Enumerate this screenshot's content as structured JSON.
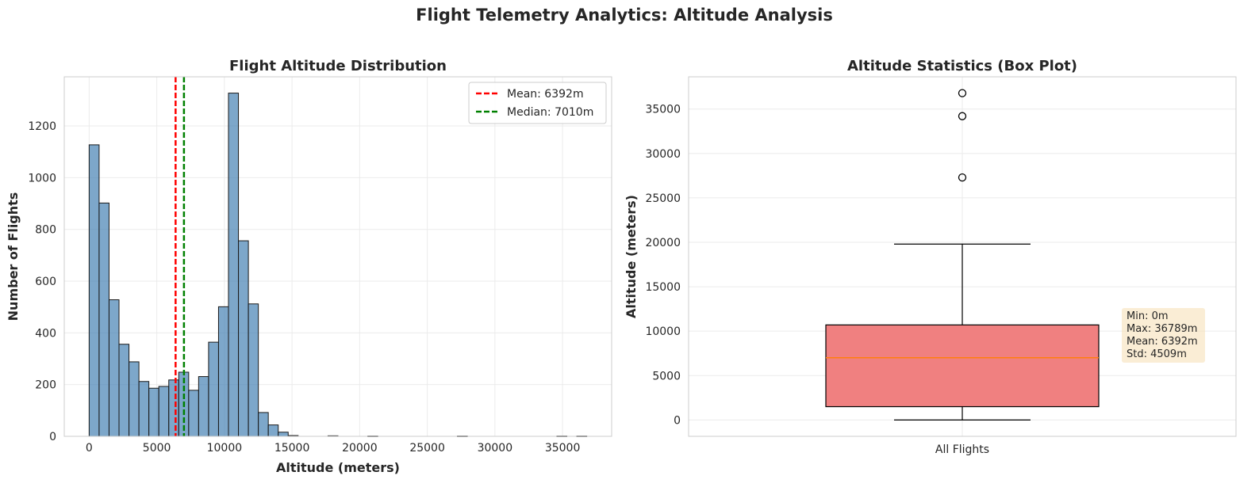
{
  "figure": {
    "title": "Flight Telemetry Analytics: Altitude Analysis"
  },
  "chart_data": [
    {
      "type": "histogram",
      "title": "Flight Altitude Distribution",
      "xlabel": "Altitude (meters)",
      "ylabel": "Number of Flights",
      "xlim": [
        -1840,
        38630
      ],
      "ylim": [
        0,
        1390
      ],
      "xticks": [
        "0",
        "5000",
        "10000",
        "15000",
        "20000",
        "25000",
        "30000",
        "35000"
      ],
      "xtick_values": [
        0,
        5000,
        10000,
        15000,
        20000,
        25000,
        30000,
        35000
      ],
      "yticks": [
        "0",
        "200",
        "400",
        "600",
        "800",
        "1000",
        "1200"
      ],
      "ytick_values": [
        0,
        200,
        400,
        600,
        800,
        1000,
        1200
      ],
      "bin_start": 0,
      "bin_width": 735.78,
      "counts": [
        1127,
        902,
        528,
        356,
        288,
        212,
        186,
        193,
        218,
        248,
        178,
        231,
        364,
        501,
        1327,
        756,
        512,
        92,
        44,
        16,
        3,
        0,
        0,
        0,
        2,
        0,
        0,
        0,
        1,
        0,
        0,
        0,
        0,
        0,
        0,
        0,
        0,
        1,
        0,
        0,
        0,
        0,
        0,
        0,
        0,
        0,
        0,
        1,
        0,
        1
      ],
      "colors": {
        "bars": "#4682b4",
        "mean": "#ff0000",
        "median": "#008000"
      },
      "grid": true,
      "legend_position": "top-right",
      "reference_lines": [
        {
          "name": "Mean: 6392m",
          "value": 6392
        },
        {
          "name": "Median: 7010m",
          "value": 7010
        }
      ]
    },
    {
      "type": "box",
      "title": "Altitude Statistics (Box Plot)",
      "ylabel": "Altitude (meters)",
      "ylim": [
        -1840,
        38630
      ],
      "yticks": [
        "0",
        "5000",
        "10000",
        "15000",
        "20000",
        "25000",
        "30000",
        "35000"
      ],
      "ytick_values": [
        0,
        5000,
        10000,
        15000,
        20000,
        25000,
        30000,
        35000
      ],
      "category": "All Flights",
      "whisker_low": 0,
      "q1": 1500,
      "median": 7010,
      "q3": 10700,
      "whisker_high": 19800,
      "outliers": [
        27300,
        34200,
        36789
      ],
      "colors": {
        "box": "#f08080",
        "median": "#ff7f0e"
      },
      "grid": true,
      "stats_box": [
        "Min: 0m",
        "Max: 36789m",
        "Mean: 6392m",
        "Std: 4509m"
      ]
    }
  ]
}
